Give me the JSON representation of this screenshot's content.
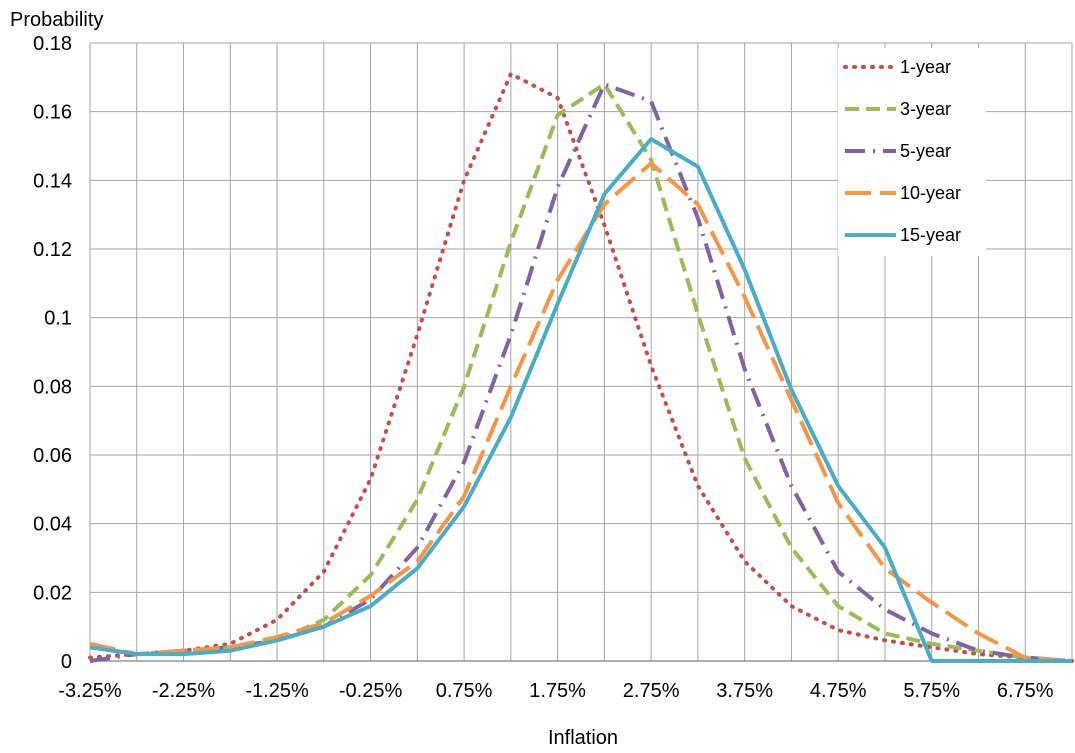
{
  "chart_data": {
    "type": "line",
    "title": "",
    "xlabel": "Inflation",
    "ylabel": "Probability",
    "ylim": [
      0,
      0.18
    ],
    "y_ticks": [
      "0",
      "0.02",
      "0.04",
      "0.06",
      "0.08",
      "0.1",
      "0.12",
      "0.14",
      "0.16",
      "0.18"
    ],
    "x": [
      "-3.25%",
      "-2.75%",
      "-2.25%",
      "-1.75%",
      "-1.25%",
      "-0.75%",
      "-0.25%",
      "0.25%",
      "0.75%",
      "1.25%",
      "1.75%",
      "2.25%",
      "2.75%",
      "3.25%",
      "3.75%",
      "4.25%",
      "4.75%",
      "5.25%",
      "5.75%",
      "6.25%",
      "6.75%",
      "7.25%"
    ],
    "x_tick_labels": [
      "-3.25%",
      "-2.25%",
      "-1.25%",
      "-0.25%",
      "0.75%",
      "1.75%",
      "2.75%",
      "3.75%",
      "4.75%",
      "5.75%",
      "6.75%"
    ],
    "grid": true,
    "legend_position": "top-right",
    "series": [
      {
        "name": "1-year",
        "color": "#C0504D",
        "dash": "dotted",
        "values": [
          0.001,
          0.002,
          0.003,
          0.005,
          0.012,
          0.026,
          0.053,
          0.095,
          0.14,
          0.171,
          0.164,
          0.127,
          0.086,
          0.051,
          0.029,
          0.016,
          0.009,
          0.006,
          0.004,
          0.002,
          0.001,
          0.0
        ]
      },
      {
        "name": "3-year",
        "color": "#9BBB59",
        "dash": "dashed",
        "values": [
          0.004,
          0.002,
          0.003,
          0.004,
          0.006,
          0.012,
          0.025,
          0.047,
          0.08,
          0.122,
          0.159,
          0.168,
          0.146,
          0.101,
          0.059,
          0.033,
          0.016,
          0.008,
          0.005,
          0.003,
          0.001,
          0.0
        ]
      },
      {
        "name": "5-year",
        "color": "#8064A2",
        "dash": "dashdot",
        "values": [
          0.0,
          0.002,
          0.003,
          0.004,
          0.006,
          0.01,
          0.018,
          0.033,
          0.058,
          0.095,
          0.138,
          0.168,
          0.163,
          0.129,
          0.085,
          0.051,
          0.026,
          0.015,
          0.008,
          0.003,
          0.001,
          0.0
        ]
      },
      {
        "name": "10-year",
        "color": "#F79646",
        "dash": "longdash",
        "values": [
          0.005,
          0.002,
          0.003,
          0.004,
          0.007,
          0.011,
          0.019,
          0.029,
          0.048,
          0.08,
          0.111,
          0.133,
          0.145,
          0.133,
          0.106,
          0.076,
          0.046,
          0.027,
          0.017,
          0.008,
          0.001,
          0.0
        ]
      },
      {
        "name": "15-year",
        "color": "#4BACC6",
        "dash": "solid",
        "values": [
          0.004,
          0.002,
          0.002,
          0.003,
          0.006,
          0.01,
          0.016,
          0.027,
          0.045,
          0.071,
          0.104,
          0.136,
          0.152,
          0.144,
          0.114,
          0.079,
          0.051,
          0.033,
          0.0,
          0.0,
          0.0,
          0.0
        ]
      }
    ]
  }
}
